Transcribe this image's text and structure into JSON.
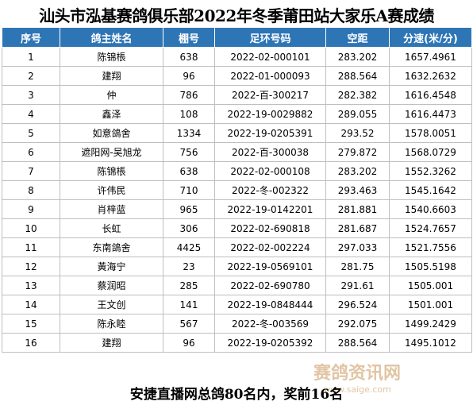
{
  "title": "汕头市泓基赛鸽俱乐部2022年冬季莆田站大家乐A赛成绩",
  "table": {
    "header": [
      "序号",
      "鸽主姓名",
      "棚号",
      "足环号码",
      "空距",
      "分速(米/分)"
    ],
    "rows": [
      [
        "1",
        "陈锦棖",
        "638",
        "2022-02-000101",
        "283.202",
        "1657.4961"
      ],
      [
        "2",
        "建翔",
        "96",
        "2022-01-000093",
        "288.564",
        "1632.2632"
      ],
      [
        "3",
        "仲",
        "786",
        "2022-百-300217",
        "282.382",
        "1616.4548"
      ],
      [
        "4",
        "鑫泽",
        "108",
        "2022-19-0029882",
        "289.055",
        "1616.4473"
      ],
      [
        "5",
        "如意鴿舍",
        "1334",
        "2022-19-0205391",
        "293.52",
        "1578.0051"
      ],
      [
        "6",
        "遮阳网-吴旭龙",
        "756",
        "2022-百-300038",
        "279.872",
        "1568.0729"
      ],
      [
        "7",
        "陈锦棖",
        "638",
        "2022-02-000108",
        "283.202",
        "1552.3262"
      ],
      [
        "8",
        "许伟民",
        "710",
        "2022-冬-002322",
        "293.463",
        "1545.1642"
      ],
      [
        "9",
        "肖梓蓝",
        "965",
        "2022-19-0142201",
        "281.881",
        "1540.6603"
      ],
      [
        "10",
        "长虹",
        "306",
        "2022-02-690818",
        "281.687",
        "1524.7657"
      ],
      [
        "11",
        "东南鴿舍",
        "4425",
        "2022-02-002224",
        "297.033",
        "1521.7556"
      ],
      [
        "12",
        "黃海宁",
        "23",
        "2022-19-0569101",
        "281.75",
        "1505.5198"
      ],
      [
        "13",
        "蔡润昭",
        "285",
        "2022-02-690780",
        "291.61",
        "1505.001"
      ],
      [
        "14",
        "王文创",
        "141",
        "2022-19-0848444",
        "296.524",
        "1501.001"
      ],
      [
        "15",
        "陈永睦",
        "567",
        "2022-冬-003569",
        "292.075",
        "1499.2429"
      ],
      [
        "16",
        "建翔",
        "96",
        "2022-19-0205392",
        "288.564",
        "1495.1012"
      ]
    ]
  },
  "footer": "安捷直播网总鸽80名内，奖前16名",
  "watermark": {
    "name": "赛鸽资讯网",
    "url": "www.saige.com"
  }
}
